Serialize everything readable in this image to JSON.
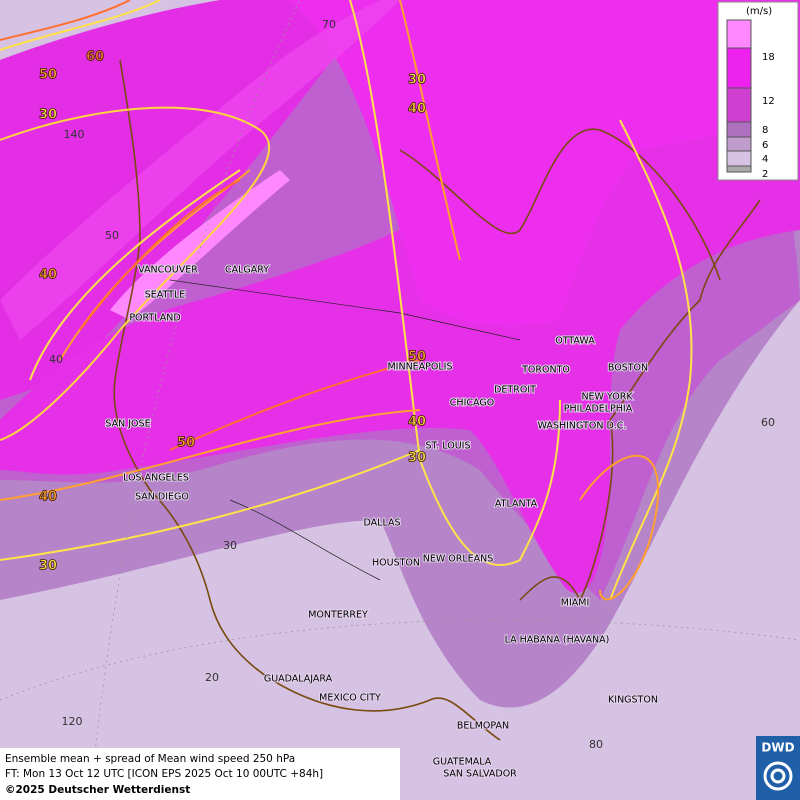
{
  "map": {
    "cities": [
      "VANCOUVER",
      "CALGARY",
      "SEATTLE",
      "PORTLAND",
      "MINNEAPOLIS",
      "TORONTO",
      "OTTAWA",
      "BOSTON",
      "DETROIT",
      "NEW YORK",
      "PHILADELPHIA",
      "CHICAGO",
      "WASHINGTON D.C.",
      "SAN JOSE",
      "ST. LOUIS",
      "LOS ANGELES",
      "SAN DIEGO",
      "ATLANTA",
      "DALLAS",
      "HOUSTON",
      "NEW ORLEANS",
      "MIAMI",
      "MONTERREY",
      "LA HABANA (HAVANA)",
      "GUADALAJARA",
      "MEXICO CITY",
      "KINGSTON",
      "BELMOPAN",
      "GUATEMALA",
      "SAN SALVADOR"
    ],
    "contour_labels": [
      "60",
      "50",
      "30",
      "40",
      "40",
      "30",
      "50",
      "50",
      "40",
      "30",
      "30",
      "40"
    ],
    "grid_labels": [
      "70",
      "140",
      "50",
      "40",
      "60",
      "30",
      "20",
      "120",
      "80"
    ]
  },
  "legend": {
    "unit": "(m/s)",
    "ticks": [
      "18",
      "12",
      "8",
      "6",
      "4",
      "2"
    ]
  },
  "footer": {
    "title": "Ensemble mean + spread of Mean wind speed 250 hPa",
    "forecast": "FT: Mon 13 Oct 12 UTC [ICON EPS 2025 Oct 10 00UTC +84h]",
    "copyright": "©2025 Deutscher Wetterdienst",
    "logo": "DWD"
  }
}
